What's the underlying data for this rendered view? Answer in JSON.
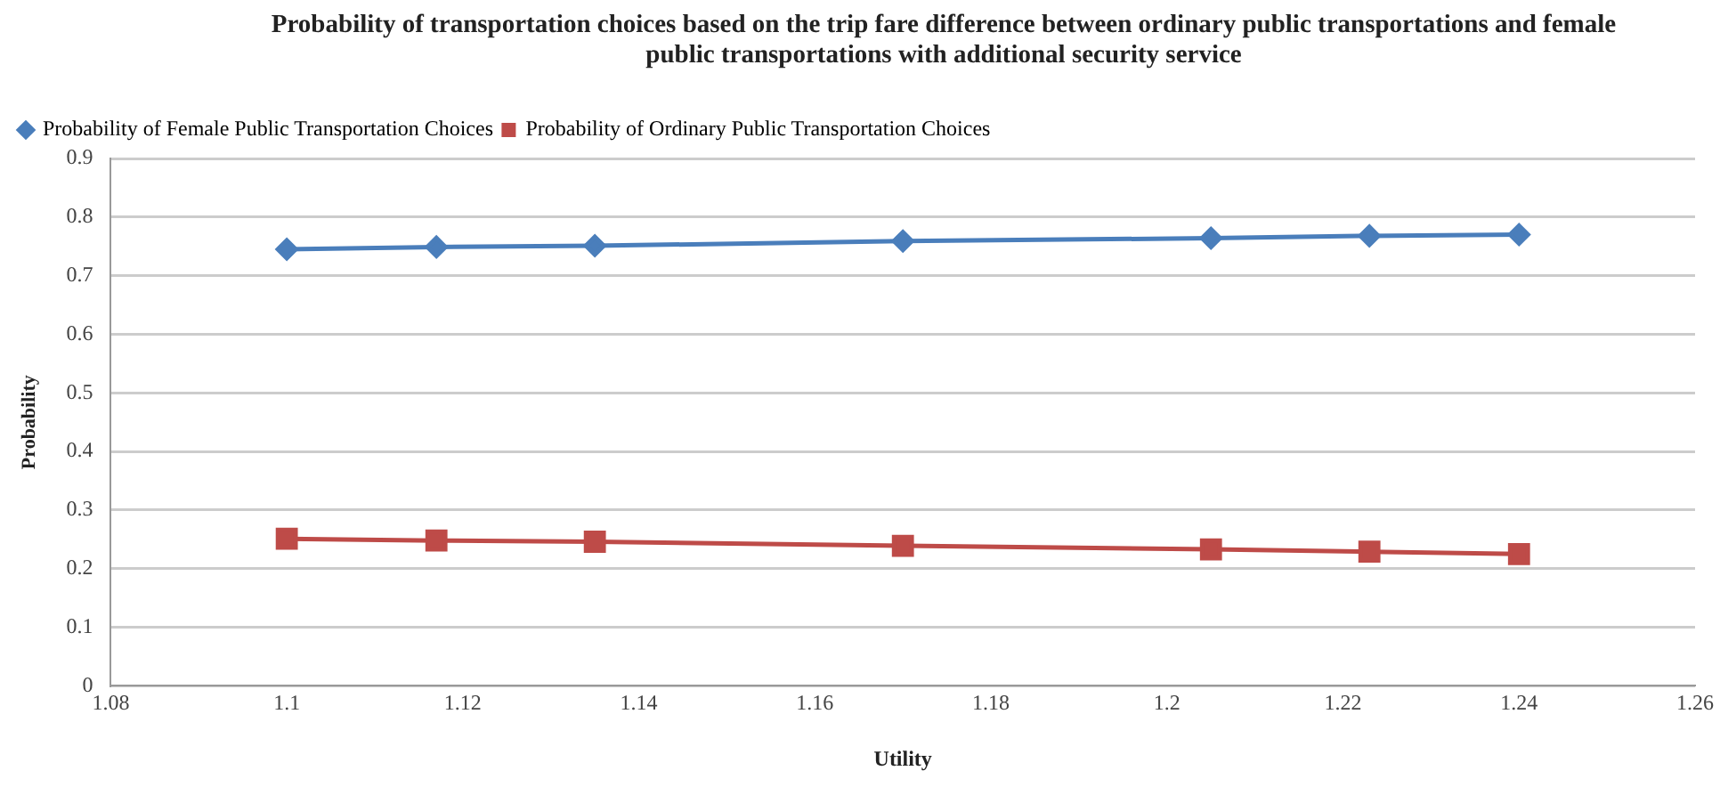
{
  "chart_data": {
    "type": "line",
    "title": "Probability of transportation choices based on the trip fare difference between ordinary public transportations and female public transportations with additional security service",
    "xlabel": "Utility",
    "ylabel": "Probability",
    "x": [
      1.1,
      1.117,
      1.135,
      1.17,
      1.205,
      1.223,
      1.24
    ],
    "series": [
      {
        "name": "Probability of Female Public Transportation Choices",
        "color": "#4a7ebb",
        "marker": "diamond",
        "values": [
          0.745,
          0.749,
          0.751,
          0.759,
          0.764,
          0.768,
          0.77
        ]
      },
      {
        "name": "Probability of Ordinary Public Transportation Choices",
        "color": "#be4b48",
        "marker": "square",
        "values": [
          0.251,
          0.248,
          0.246,
          0.239,
          0.233,
          0.229,
          0.225
        ]
      }
    ],
    "xlim": [
      1.08,
      1.26
    ],
    "xticks": [
      1.08,
      1.1,
      1.12,
      1.14,
      1.16,
      1.18,
      1.2,
      1.22,
      1.24,
      1.26
    ],
    "ylim": [
      0,
      0.9
    ],
    "yticks": [
      0,
      0.1,
      0.2,
      0.3,
      0.4,
      0.5,
      0.6,
      0.7,
      0.8,
      0.9
    ],
    "grid": "y",
    "legend": "top left",
    "line_style": "solid"
  }
}
